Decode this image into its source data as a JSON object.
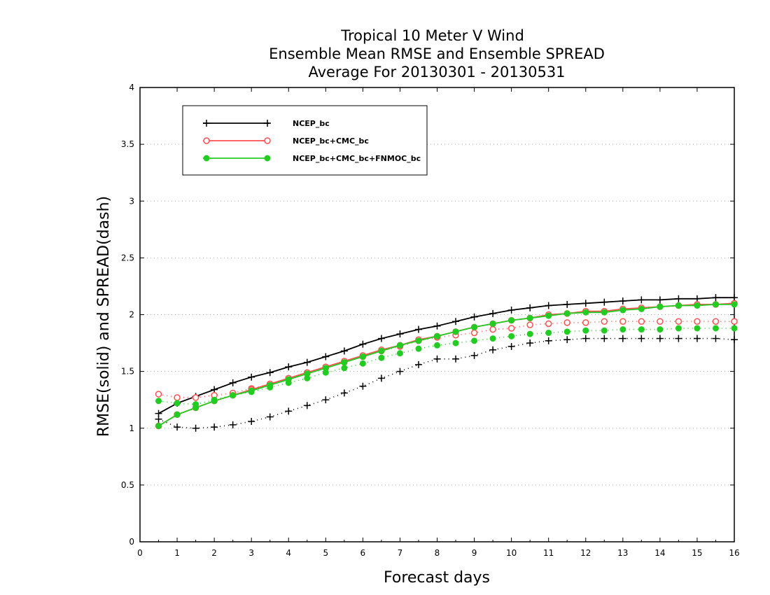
{
  "chart_data": {
    "type": "line",
    "title_lines": [
      "Tropical 10 Meter V Wind",
      "Ensemble Mean RMSE and Ensemble SPREAD",
      "Average For 20130301 - 20130531"
    ],
    "xlabel": "Forecast days",
    "ylabel": "RMSE(solid) and SPREAD(dash)",
    "xlim": [
      0,
      16
    ],
    "ylim": [
      0,
      4
    ],
    "x_ticks": [
      "0",
      "1",
      "2",
      "3",
      "4",
      "5",
      "6",
      "7",
      "8",
      "9",
      "10",
      "11",
      "12",
      "13",
      "14",
      "15",
      "16"
    ],
    "y_ticks": [
      "0",
      "0.5",
      "1",
      "1.5",
      "2",
      "2.5",
      "3",
      "3.5",
      "4"
    ],
    "y_gridlines": [
      0.5,
      1,
      1.5,
      2,
      2.5,
      3,
      3.5
    ],
    "grid": "horizontal dotted",
    "legend_position": "top-left",
    "x": [
      0.5,
      1,
      1.5,
      2,
      2.5,
      3,
      3.5,
      4,
      4.5,
      5,
      5.5,
      6,
      6.5,
      7,
      7.5,
      8,
      8.5,
      9,
      9.5,
      10,
      10.5,
      11,
      11.5,
      12,
      12.5,
      13,
      13.5,
      14,
      14.5,
      15,
      15.5,
      16
    ],
    "series": [
      {
        "name": "NCEP_bc",
        "color": "#000000",
        "marker": "plus",
        "rmse": [
          1.13,
          1.22,
          1.28,
          1.34,
          1.4,
          1.45,
          1.49,
          1.54,
          1.58,
          1.63,
          1.68,
          1.74,
          1.79,
          1.83,
          1.87,
          1.9,
          1.94,
          1.98,
          2.01,
          2.04,
          2.06,
          2.08,
          2.09,
          2.1,
          2.11,
          2.12,
          2.13,
          2.13,
          2.14,
          2.14,
          2.15,
          2.15
        ],
        "spread": [
          1.08,
          1.01,
          1.0,
          1.01,
          1.03,
          1.06,
          1.1,
          1.15,
          1.2,
          1.25,
          1.31,
          1.37,
          1.44,
          1.5,
          1.56,
          1.61,
          1.61,
          1.64,
          1.69,
          1.72,
          1.75,
          1.77,
          1.78,
          1.79,
          1.79,
          1.79,
          1.79,
          1.79,
          1.79,
          1.79,
          1.79,
          1.78
        ]
      },
      {
        "name": "NCEP_bc+CMC_bc",
        "color": "#ff5050",
        "marker": "open-circle",
        "rmse": [
          1.02,
          1.12,
          1.18,
          1.24,
          1.29,
          1.34,
          1.39,
          1.44,
          1.49,
          1.54,
          1.59,
          1.64,
          1.69,
          1.73,
          1.78,
          1.81,
          1.85,
          1.89,
          1.92,
          1.95,
          1.97,
          2.0,
          2.01,
          2.03,
          2.03,
          2.05,
          2.06,
          2.07,
          2.08,
          2.09,
          2.09,
          2.1
        ],
        "spread": [
          1.3,
          1.27,
          1.27,
          1.29,
          1.31,
          1.35,
          1.39,
          1.44,
          1.48,
          1.53,
          1.58,
          1.63,
          1.68,
          1.72,
          1.77,
          1.8,
          1.82,
          1.84,
          1.87,
          1.88,
          1.91,
          1.92,
          1.93,
          1.93,
          1.94,
          1.94,
          1.94,
          1.94,
          1.94,
          1.94,
          1.94,
          1.94
        ]
      },
      {
        "name": "NCEP_bc+CMC_bc+FNMOC_bc",
        "color": "#22cc22",
        "marker": "filled-circle",
        "rmse": [
          1.02,
          1.12,
          1.18,
          1.24,
          1.29,
          1.33,
          1.38,
          1.43,
          1.48,
          1.53,
          1.58,
          1.63,
          1.68,
          1.73,
          1.77,
          1.81,
          1.85,
          1.89,
          1.92,
          1.95,
          1.97,
          1.99,
          2.01,
          2.02,
          2.02,
          2.04,
          2.05,
          2.07,
          2.08,
          2.08,
          2.09,
          2.09
        ],
        "spread": [
          1.24,
          1.22,
          1.21,
          1.25,
          1.29,
          1.32,
          1.36,
          1.4,
          1.44,
          1.49,
          1.53,
          1.57,
          1.62,
          1.66,
          1.7,
          1.73,
          1.75,
          1.77,
          1.79,
          1.81,
          1.83,
          1.84,
          1.85,
          1.86,
          1.86,
          1.87,
          1.87,
          1.87,
          1.88,
          1.88,
          1.88,
          1.88
        ]
      }
    ]
  }
}
